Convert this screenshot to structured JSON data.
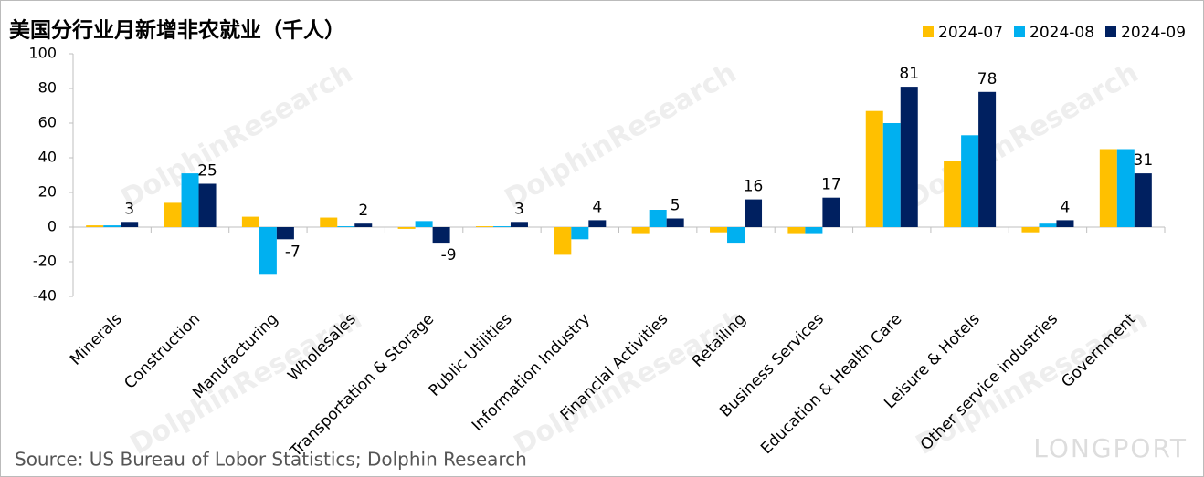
{
  "chart_data": {
    "type": "bar",
    "title": "美国分行业月新增非农就业（千人）",
    "categories": [
      "Minerals",
      "Construction",
      "Manufacturing",
      "Wholesales",
      "Transportation & Storage",
      "Public Utilities",
      "Information Industry",
      "Financial Activities",
      "Retailing",
      "Business Services",
      "Education & Health Care",
      "Leisure & Hotels",
      "Other service industries",
      "Government"
    ],
    "series": [
      {
        "name": "2024-07",
        "color": "#FFC000",
        "values": [
          1,
          14,
          6,
          5.5,
          -1,
          0.5,
          -16,
          -4,
          -3,
          -4,
          67,
          38,
          -3,
          45
        ]
      },
      {
        "name": "2024-08",
        "color": "#00B0F0",
        "values": [
          1,
          31,
          -27,
          0.5,
          3.5,
          0.5,
          -7,
          10,
          -9,
          -4,
          60,
          53,
          2,
          45
        ]
      },
      {
        "name": "2024-09",
        "color": "#002060",
        "values": [
          3,
          25,
          -7,
          2,
          -9,
          3,
          4,
          5,
          16,
          17,
          81,
          78,
          4,
          31
        ],
        "data_labels": true
      }
    ],
    "ylim": [
      -40,
      100
    ],
    "yticks": [
      -40,
      -20,
      0,
      20,
      40,
      60,
      80,
      100
    ],
    "legend": "top-right",
    "source": "Source: US Bureau of Lobor Statistics; Dolphin Research",
    "watermark": "DolphinResearch",
    "brand": "LONGPORT"
  }
}
